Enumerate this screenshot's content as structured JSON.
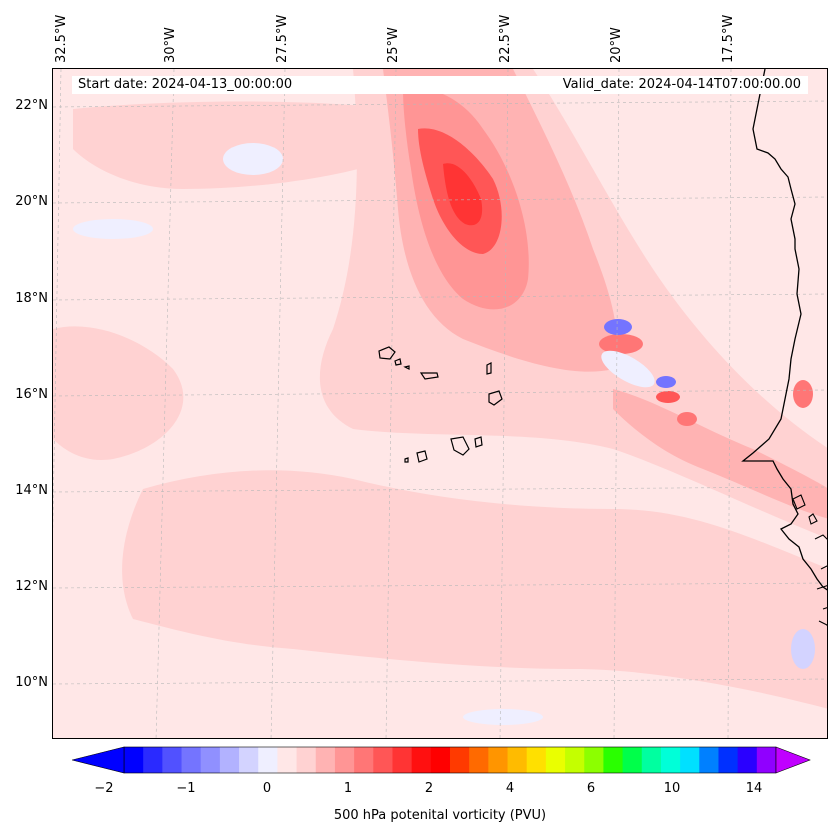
{
  "map": {
    "longitude_labels": [
      "32.5°W",
      "30°W",
      "27.5°W",
      "25°W",
      "22.5°W",
      "20°W",
      "17.5°W"
    ],
    "latitude_labels": [
      "22°N",
      "20°N",
      "18°N",
      "16°N",
      "14°N",
      "12°N",
      "10°N"
    ],
    "start_date_text": "Start date: 2024-04-13_00:00:00",
    "valid_date_text": "Valid_date: 2024-04-14T07:00:00.00",
    "gridlines": true,
    "coastline_color": "#000000",
    "features": [
      "Cape Verde islands",
      "West African coastline"
    ]
  },
  "colorbar": {
    "title": "500 hPa potenital vorticity (PVU)",
    "tick_labels": [
      "−2",
      "−1",
      "0",
      "1",
      "2",
      "4",
      "6",
      "10",
      "14"
    ],
    "colors": [
      "#0000ff",
      "#2a2aff",
      "#5151ff",
      "#7474ff",
      "#9090ff",
      "#b2b2ff",
      "#d3d3ff",
      "#efefff",
      "#ffe7e7",
      "#ffd2d2",
      "#ffb3b3",
      "#ff9595",
      "#ff7676",
      "#ff5656",
      "#ff3434",
      "#ff1010",
      "#ff0000",
      "#ff3a00",
      "#ff6a00",
      "#ff9500",
      "#ffbb00",
      "#ffe000",
      "#eaff00",
      "#c4ff00",
      "#8cff00",
      "#2aff00",
      "#00ff4a",
      "#00ffa0",
      "#00ffd8",
      "#00e0ff",
      "#0080ff",
      "#0030ff",
      "#2a00ff",
      "#9000ff"
    ],
    "extend_low_color": "#0000ff",
    "extend_high_color": "#c000ff"
  }
}
